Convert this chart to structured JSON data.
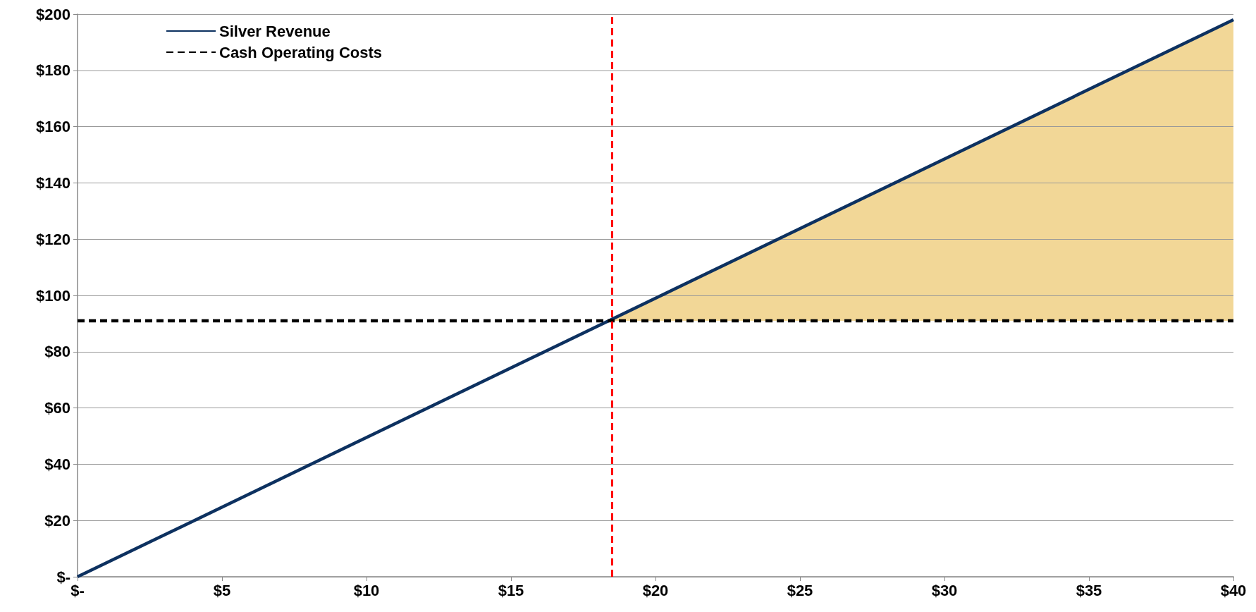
{
  "chart_data": {
    "type": "line",
    "x": [
      0,
      40
    ],
    "series": [
      {
        "name": "Silver Revenue",
        "color": "#0d3160",
        "values": [
          0,
          198
        ],
        "line_style": "solid"
      },
      {
        "name": "Cash Operating Costs",
        "color": "#000000",
        "values": [
          91,
          91
        ],
        "line_style": "dashed"
      }
    ],
    "xlim": [
      0,
      40
    ],
    "xticks": [
      {
        "value": 0,
        "label": "$-"
      },
      {
        "value": 5,
        "label": "$5"
      },
      {
        "value": 10,
        "label": "$10"
      },
      {
        "value": 15,
        "label": "$15"
      },
      {
        "value": 20,
        "label": "$20"
      },
      {
        "value": 25,
        "label": "$25"
      },
      {
        "value": 30,
        "label": "$30"
      },
      {
        "value": 35,
        "label": "$35"
      },
      {
        "value": 40,
        "label": "$40"
      }
    ],
    "ylim": [
      0,
      200
    ],
    "yticks": [
      {
        "value": 0,
        "label": "$-"
      },
      {
        "value": 20,
        "label": "$20"
      },
      {
        "value": 40,
        "label": "$40"
      },
      {
        "value": 60,
        "label": "$60"
      },
      {
        "value": 80,
        "label": "$80"
      },
      {
        "value": 100,
        "label": "$100"
      },
      {
        "value": 120,
        "label": "$120"
      },
      {
        "value": 140,
        "label": "$140"
      },
      {
        "value": 160,
        "label": "$160"
      },
      {
        "value": 180,
        "label": "$180"
      },
      {
        "value": 200,
        "label": "$200"
      }
    ],
    "ref_lines": [
      {
        "axis": "x",
        "value": 18.5,
        "color": "#ff0000",
        "line_style": "dashed"
      }
    ],
    "grid": "y",
    "legend": "top left"
  }
}
